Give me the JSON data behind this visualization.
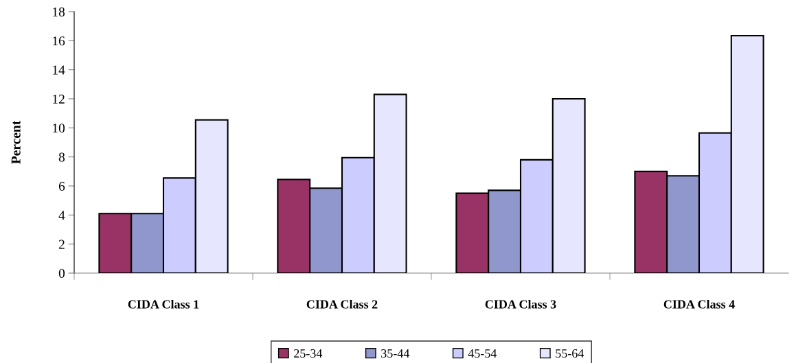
{
  "chart_data": {
    "type": "bar",
    "ylabel": "Percent",
    "categories": [
      "CIDA Class 1",
      "CIDA Class 2",
      "CIDA Class 3",
      "CIDA Class 4"
    ],
    "series": [
      {
        "name": "25-34",
        "color": "#993366",
        "values": [
          4.1,
          6.45,
          5.5,
          7.0
        ]
      },
      {
        "name": "35-44",
        "color": "#8f97cc",
        "values": [
          4.1,
          5.85,
          5.7,
          6.7
        ]
      },
      {
        "name": "45-54",
        "color": "#ccccff",
        "values": [
          6.55,
          7.95,
          7.8,
          9.65
        ]
      },
      {
        "name": "55-64",
        "color": "#e6e6ff",
        "values": [
          10.55,
          12.3,
          12.0,
          16.35
        ]
      }
    ],
    "ylim": [
      0,
      18
    ],
    "yticks": [
      0,
      2,
      4,
      6,
      8,
      10,
      12,
      14,
      16,
      18
    ],
    "grid": false,
    "legend": "bottom"
  }
}
